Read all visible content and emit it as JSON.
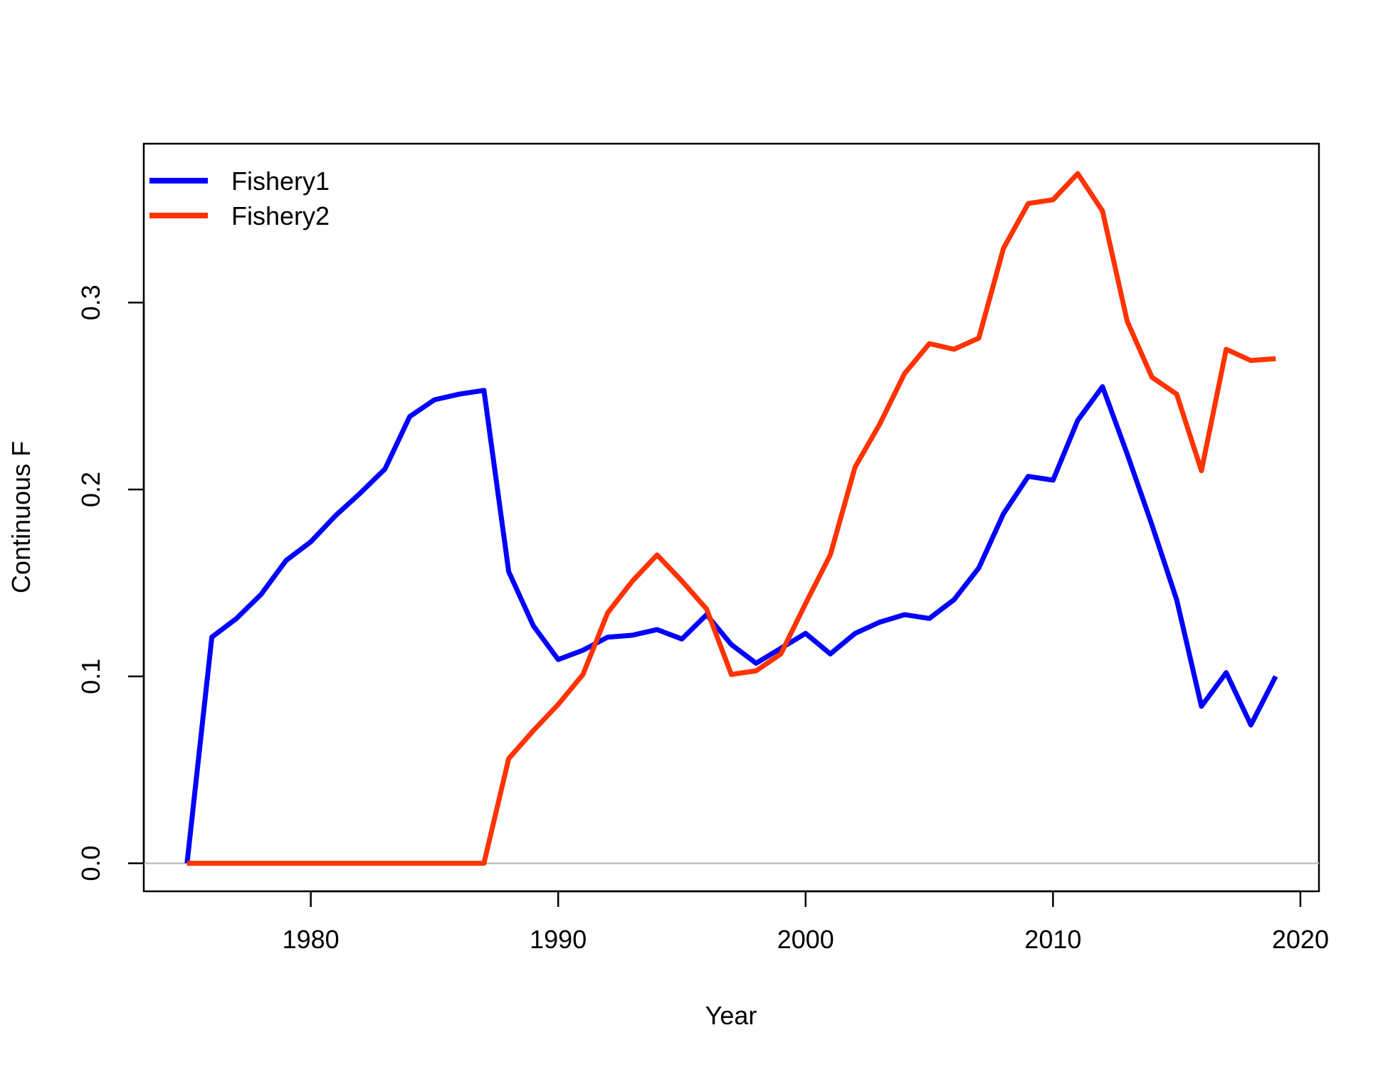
{
  "chart_data": {
    "type": "line",
    "title": "",
    "xlabel": "Year",
    "ylabel": "Continuous F",
    "xlim": [
      1973.25,
      2020.75
    ],
    "ylim": [
      -0.015,
      0.385
    ],
    "xticks": [
      1980,
      1990,
      2000,
      2010,
      2020
    ],
    "yticks": [
      0.0,
      0.1,
      0.2,
      0.3
    ],
    "xtick_labels": [
      "1980",
      "1990",
      "2000",
      "2010",
      "2020"
    ],
    "ytick_labels": [
      "0.0",
      "0.1",
      "0.2",
      "0.3"
    ],
    "grid": false,
    "reference_line": {
      "y": 0,
      "color": "#bebebe"
    },
    "legend": {
      "position": "top-left"
    },
    "x": [
      1975,
      1976,
      1977,
      1978,
      1979,
      1980,
      1981,
      1982,
      1983,
      1984,
      1985,
      1986,
      1987,
      1988,
      1989,
      1990,
      1991,
      1992,
      1993,
      1994,
      1995,
      1996,
      1997,
      1998,
      1999,
      2000,
      2001,
      2002,
      2003,
      2004,
      2005,
      2006,
      2007,
      2008,
      2009,
      2010,
      2011,
      2012,
      2013,
      2014,
      2015,
      2016,
      2017,
      2018,
      2019
    ],
    "series": [
      {
        "name": "Fishery1",
        "color": "#0000ff",
        "values": [
          0.0,
          0.121,
          0.131,
          0.144,
          0.162,
          0.172,
          0.186,
          0.198,
          0.211,
          0.239,
          0.248,
          0.251,
          0.253,
          0.156,
          0.127,
          0.109,
          0.114,
          0.121,
          0.122,
          0.125,
          0.12,
          0.133,
          0.117,
          0.107,
          0.115,
          0.123,
          0.112,
          0.123,
          0.129,
          0.133,
          0.131,
          0.141,
          0.158,
          0.187,
          0.207,
          0.205,
          0.237,
          0.255,
          0.219,
          0.181,
          0.141,
          0.084,
          0.102,
          0.074,
          0.1
        ]
      },
      {
        "name": "Fishery2",
        "color": "#ff3300",
        "values": [
          0.0,
          0.0,
          0.0,
          0.0,
          0.0,
          0.0,
          0.0,
          0.0,
          0.0,
          0.0,
          0.0,
          0.0,
          0.0,
          0.056,
          0.071,
          0.085,
          0.101,
          0.134,
          0.151,
          0.165,
          0.151,
          0.136,
          0.101,
          0.103,
          0.112,
          0.139,
          0.165,
          0.212,
          0.235,
          0.262,
          0.278,
          0.275,
          0.281,
          0.329,
          0.353,
          0.355,
          0.369,
          0.349,
          0.29,
          0.26,
          0.251,
          0.21,
          0.275,
          0.269,
          0.27
        ]
      }
    ]
  }
}
